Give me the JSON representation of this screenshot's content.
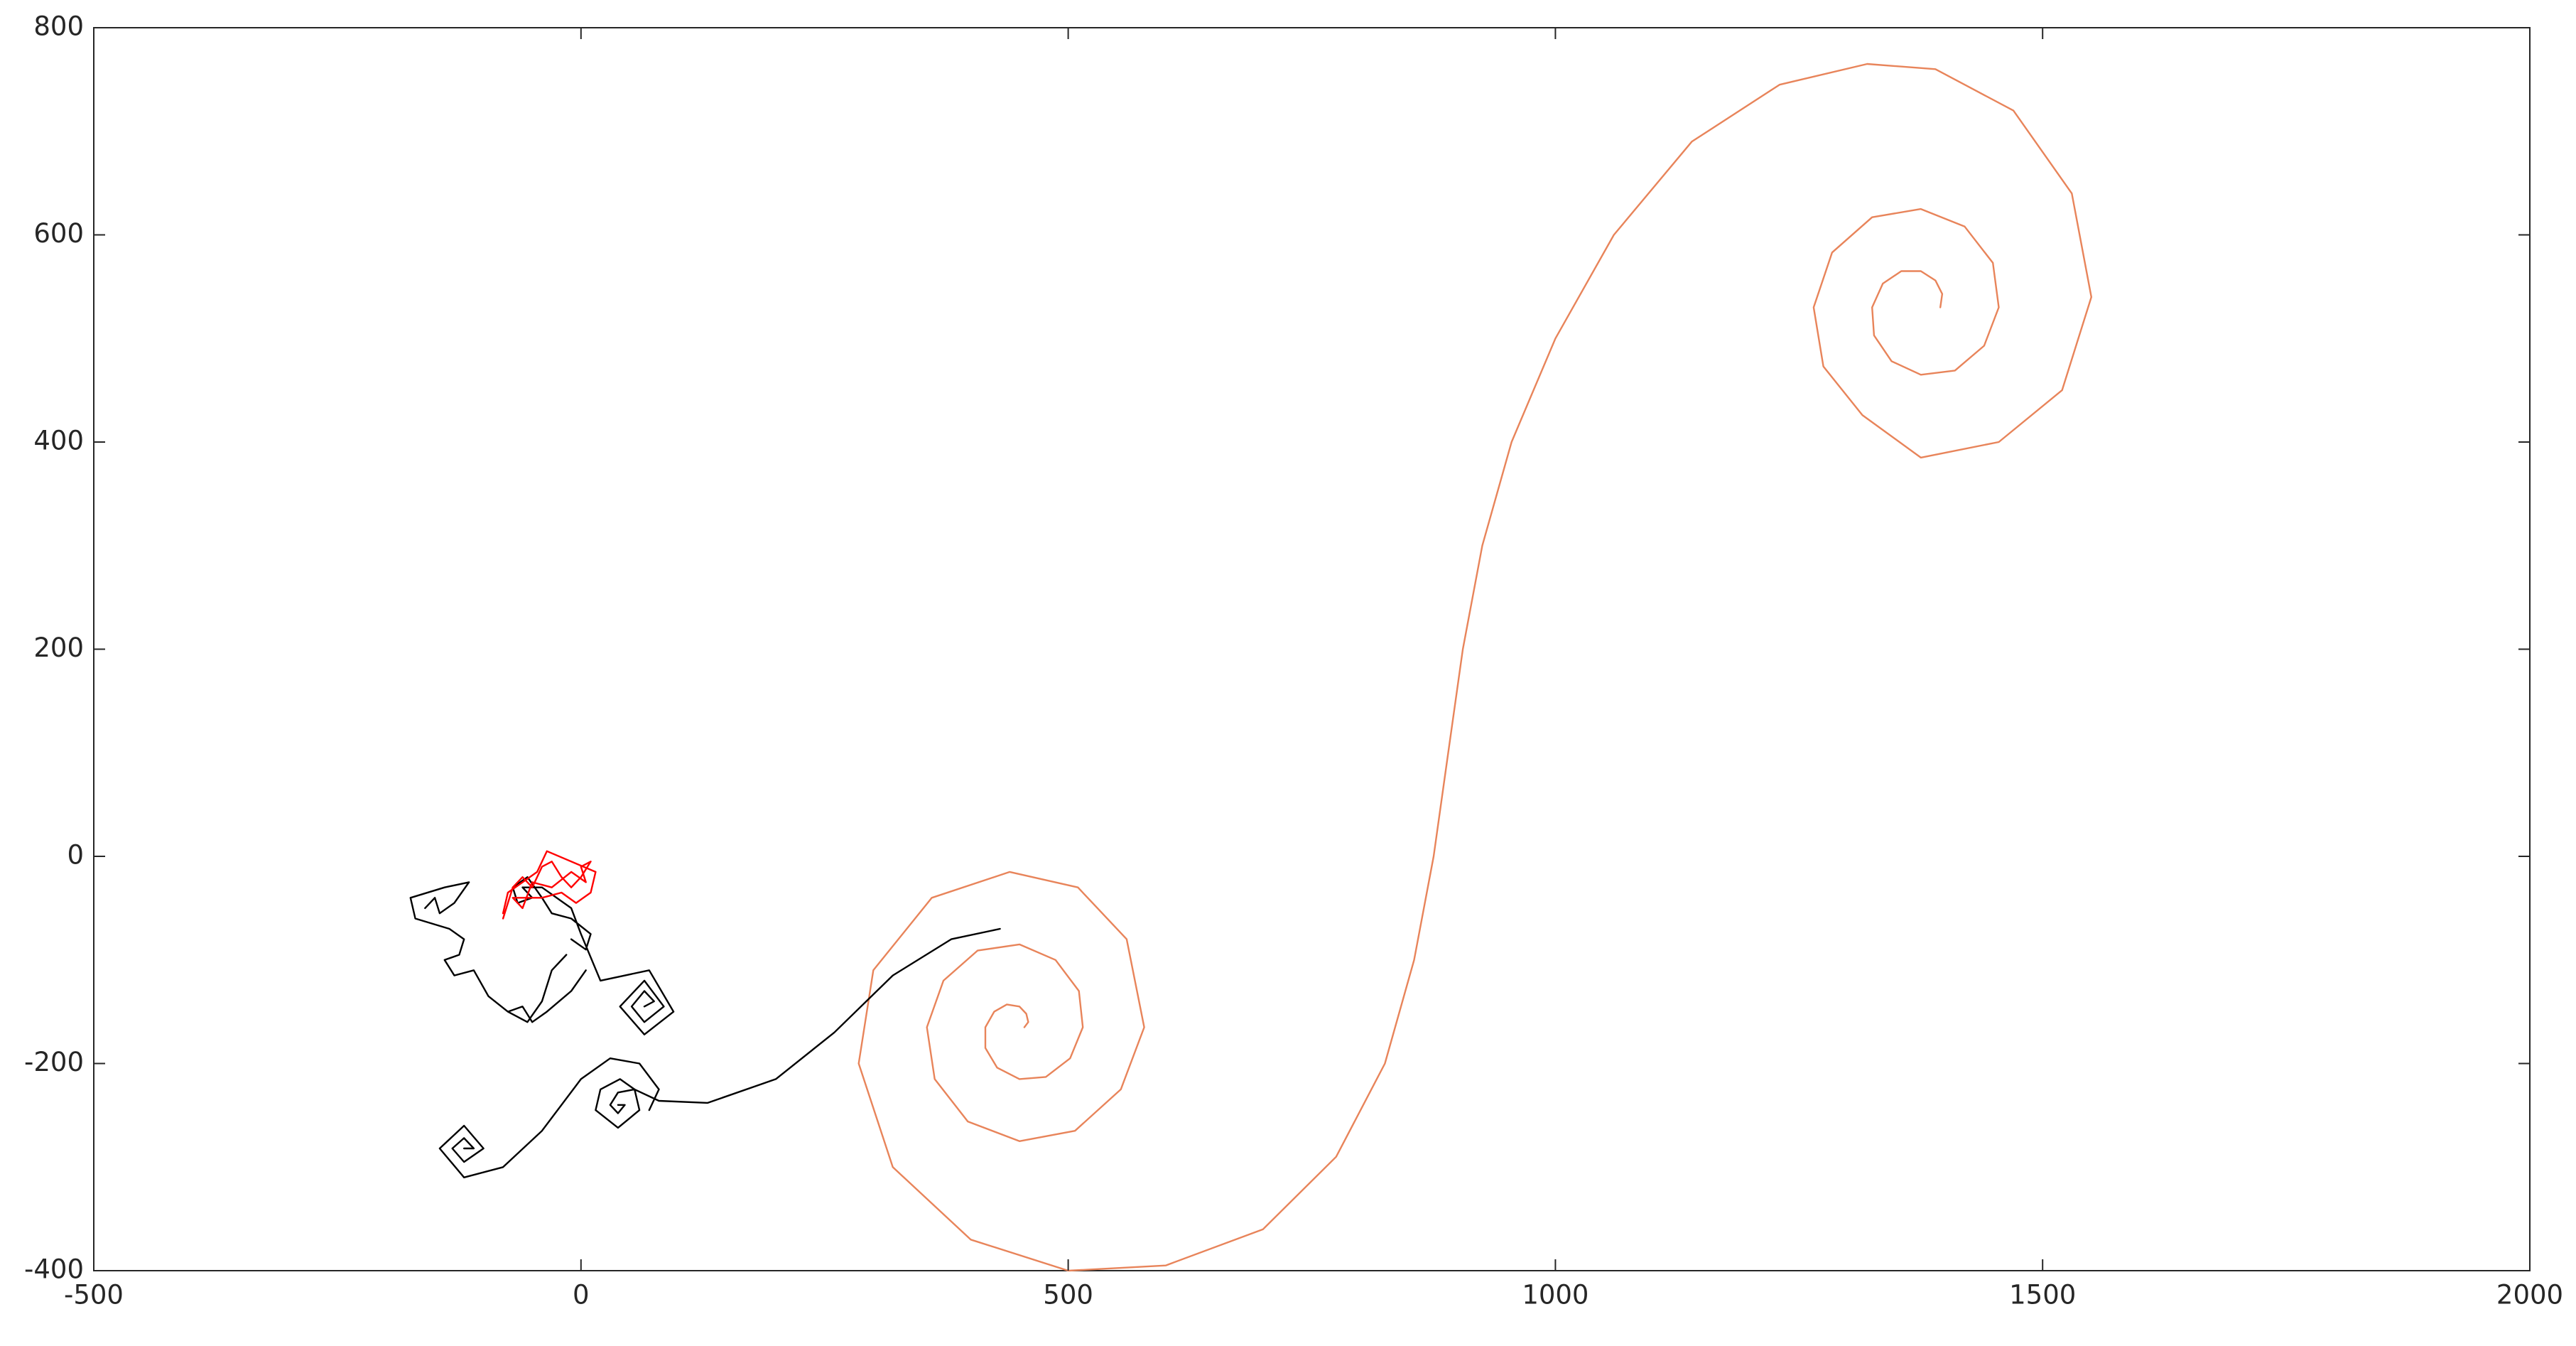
{
  "chart_data": {
    "type": "line",
    "xlim": [
      -500,
      2000
    ],
    "xticks": [
      -500,
      0,
      500,
      1000,
      1500,
      2000
    ],
    "ylim": [
      -400,
      800
    ],
    "yticks": [
      -400,
      -200,
      0,
      200,
      400,
      600,
      800
    ],
    "grid": false,
    "series": [
      {
        "color": "#e8845a",
        "x": [
          1395,
          1397,
          1390,
          1375,
          1355,
          1336,
          1325,
          1327,
          1345,
          1375,
          1410,
          1440,
          1455,
          1449,
          1420,
          1375,
          1325,
          1284,
          1265,
          1275,
          1315,
          1375,
          1455,
          1520,
          1550,
          1530,
          1470,
          1390,
          1320,
          1230,
          1140,
          1060,
          1000,
          955,
          925,
          905,
          890,
          875,
          855,
          825,
          775,
          700,
          600,
          500,
          400,
          320,
          285,
          300,
          360,
          440,
          510,
          560,
          578,
          554,
          507,
          450,
          397,
          363,
          355,
          372,
          407,
          450,
          487,
          511,
          515,
          502,
          477,
          450,
          427,
          415,
          415,
          424,
          437,
          450,
          457,
          459,
          455
        ],
        "values": [
          530,
          543,
          556,
          565,
          565,
          553,
          530,
          503,
          478,
          465,
          469,
          493,
          530,
          573,
          608,
          625,
          617,
          583,
          530,
          473,
          426,
          385,
          400,
          450,
          540,
          640,
          720,
          760,
          765,
          745,
          690,
          600,
          500,
          400,
          300,
          200,
          100,
          0,
          -100,
          -200,
          -290,
          -360,
          -395,
          -400,
          -370,
          -300,
          -200,
          -110,
          -40,
          -15,
          -30,
          -80,
          -165,
          -225,
          -265,
          -275,
          -256,
          -215,
          -165,
          -120,
          -91,
          -85,
          -100,
          -130,
          -165,
          -195,
          -213,
          -215,
          -204,
          -185,
          -165,
          -150,
          -143,
          -145,
          -152,
          -160,
          -165
        ]
      },
      {
        "color": "#000000",
        "x": [
          430,
          380,
          320,
          260,
          200,
          130,
          80,
          55,
          40,
          20,
          15,
          38,
          60,
          55,
          38,
          30,
          38,
          45,
          38,
          null,
          65,
          75,
          65,
          52,
          65,
          85,
          65,
          40,
          65,
          95,
          70,
          20,
          0,
          -10,
          -40,
          -60,
          null,
          -120,
          -110,
          -120,
          -132,
          -120,
          -100,
          -120,
          -145,
          -120,
          -80,
          -40,
          0,
          30,
          60,
          80,
          70,
          null,
          -160,
          -150,
          -145,
          -130,
          -115,
          -140,
          -175,
          -170,
          -135,
          -120,
          -125,
          -140,
          -130,
          -110,
          -95,
          -75,
          -60,
          -50,
          -35,
          -10,
          5,
          null,
          -60,
          -50,
          -65,
          -70,
          -55,
          -40,
          -30,
          -10,
          10,
          5,
          -10,
          null,
          -75,
          -55,
          -40,
          -30,
          -15
        ],
        "values": [
          -70,
          -80,
          -115,
          -170,
          -215,
          -238,
          -236,
          -225,
          -215,
          -225,
          -245,
          -262,
          -245,
          -225,
          -228,
          -240,
          -248,
          -240,
          -240,
          null,
          -145,
          -140,
          -130,
          -145,
          -160,
          -145,
          -120,
          -145,
          -172,
          -150,
          -110,
          -120,
          -75,
          -50,
          -30,
          -30,
          null,
          -282,
          -282,
          -272,
          -282,
          -295,
          -282,
          -260,
          -282,
          -310,
          -300,
          -265,
          -215,
          -195,
          -200,
          -225,
          -245,
          null,
          -50,
          -40,
          -55,
          -45,
          -25,
          -30,
          -40,
          -60,
          -70,
          -80,
          -95,
          -100,
          -115,
          -110,
          -135,
          -150,
          -145,
          -160,
          -150,
          -130,
          -110,
          null,
          -30,
          -40,
          -45,
          -30,
          -20,
          -40,
          -55,
          -60,
          -75,
          -90,
          -80,
          null,
          -150,
          -160,
          -140,
          -110,
          -95
        ]
      },
      {
        "color": "#ff0000",
        "x": [
          -80,
          -70,
          -60,
          -50,
          -40,
          -30,
          -20,
          -10,
          0,
          10,
          0,
          5,
          -10,
          -30,
          -50,
          -60,
          -70,
          -40,
          -20,
          -5,
          10,
          15,
          -35,
          -45,
          -75,
          -80
        ],
        "values": [
          -60,
          -30,
          -20,
          -30,
          -10,
          -5,
          -20,
          -30,
          -20,
          -5,
          -10,
          -25,
          -15,
          -30,
          -25,
          -50,
          -40,
          -40,
          -35,
          -45,
          -35,
          -15,
          5,
          -15,
          -35,
          -55
        ]
      }
    ]
  }
}
